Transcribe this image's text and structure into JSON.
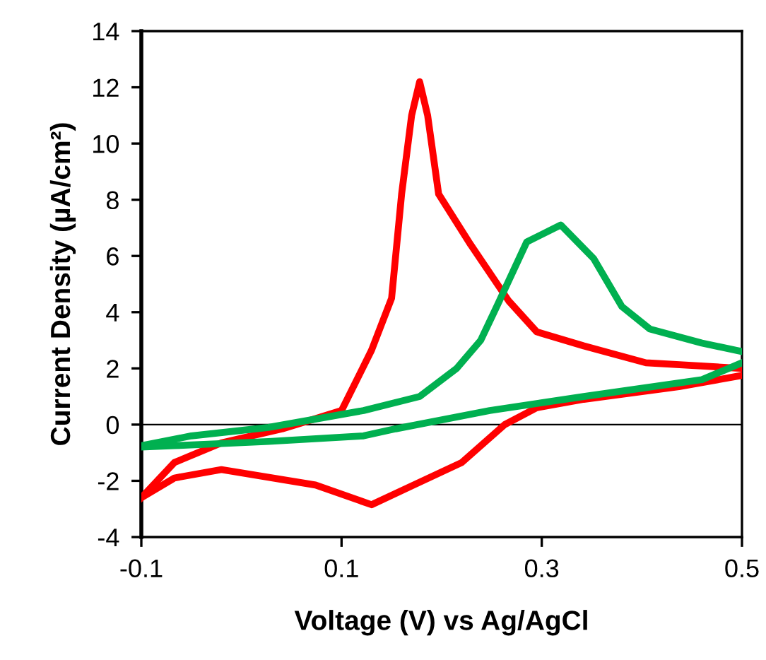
{
  "chart_data": {
    "type": "line",
    "xlabel": "Voltage (V) vs Ag/AgCl",
    "ylabel": "Current Density (µA/cm²)",
    "xlim": [
      -0.1,
      0.5
    ],
    "xticks": [
      -0.1,
      0.1,
      0.3,
      0.5
    ],
    "ylim": [
      -4,
      14
    ],
    "yticks": [
      -4,
      -2,
      0,
      2,
      4,
      6,
      8,
      10,
      12,
      14
    ],
    "grid": false,
    "legend": false,
    "marker": "none",
    "line_style": "solid",
    "ref_lines": [
      {
        "axis": "y",
        "value": 0,
        "color": "#000000"
      }
    ],
    "series": [
      {
        "color": "#ff0000",
        "x": [
          -0.1,
          -0.067,
          -0.02,
          0.041,
          0.1,
          0.13,
          0.15,
          0.16,
          0.17,
          0.178,
          0.186,
          0.197,
          0.229,
          0.267,
          0.295,
          0.342,
          0.404,
          0.5
        ],
        "values": [
          -2.6,
          -1.35,
          -0.65,
          -0.15,
          0.5,
          2.65,
          4.5,
          8.2,
          11.0,
          12.2,
          11.0,
          8.2,
          6.4,
          4.4,
          3.3,
          2.8,
          2.2,
          2.0
        ]
      },
      {
        "color": "#ff0000",
        "x": [
          -0.1,
          -0.067,
          -0.02,
          0.074,
          0.13,
          0.172,
          0.22,
          0.263,
          0.295,
          0.342,
          0.437,
          0.5
        ],
        "values": [
          -2.6,
          -1.9,
          -1.6,
          -2.15,
          -2.85,
          -2.15,
          -1.35,
          0.0,
          0.6,
          0.9,
          1.35,
          1.75
        ]
      },
      {
        "color": "#00b050",
        "x": [
          -0.1,
          -0.05,
          0.027,
          0.122,
          0.178,
          0.215,
          0.239,
          0.255,
          0.285,
          0.319,
          0.352,
          0.38,
          0.408,
          0.46,
          0.5
        ],
        "values": [
          -0.75,
          -0.4,
          -0.1,
          0.5,
          1.0,
          2.0,
          3.0,
          4.2,
          6.5,
          7.1,
          5.9,
          4.2,
          3.4,
          2.9,
          2.6
        ]
      },
      {
        "color": "#00b050",
        "x": [
          -0.1,
          -0.067,
          0.027,
          0.122,
          0.154,
          0.248,
          0.342,
          0.46,
          0.5
        ],
        "values": [
          -0.8,
          -0.75,
          -0.6,
          -0.4,
          -0.15,
          0.5,
          1.0,
          1.6,
          2.2
        ]
      }
    ]
  }
}
